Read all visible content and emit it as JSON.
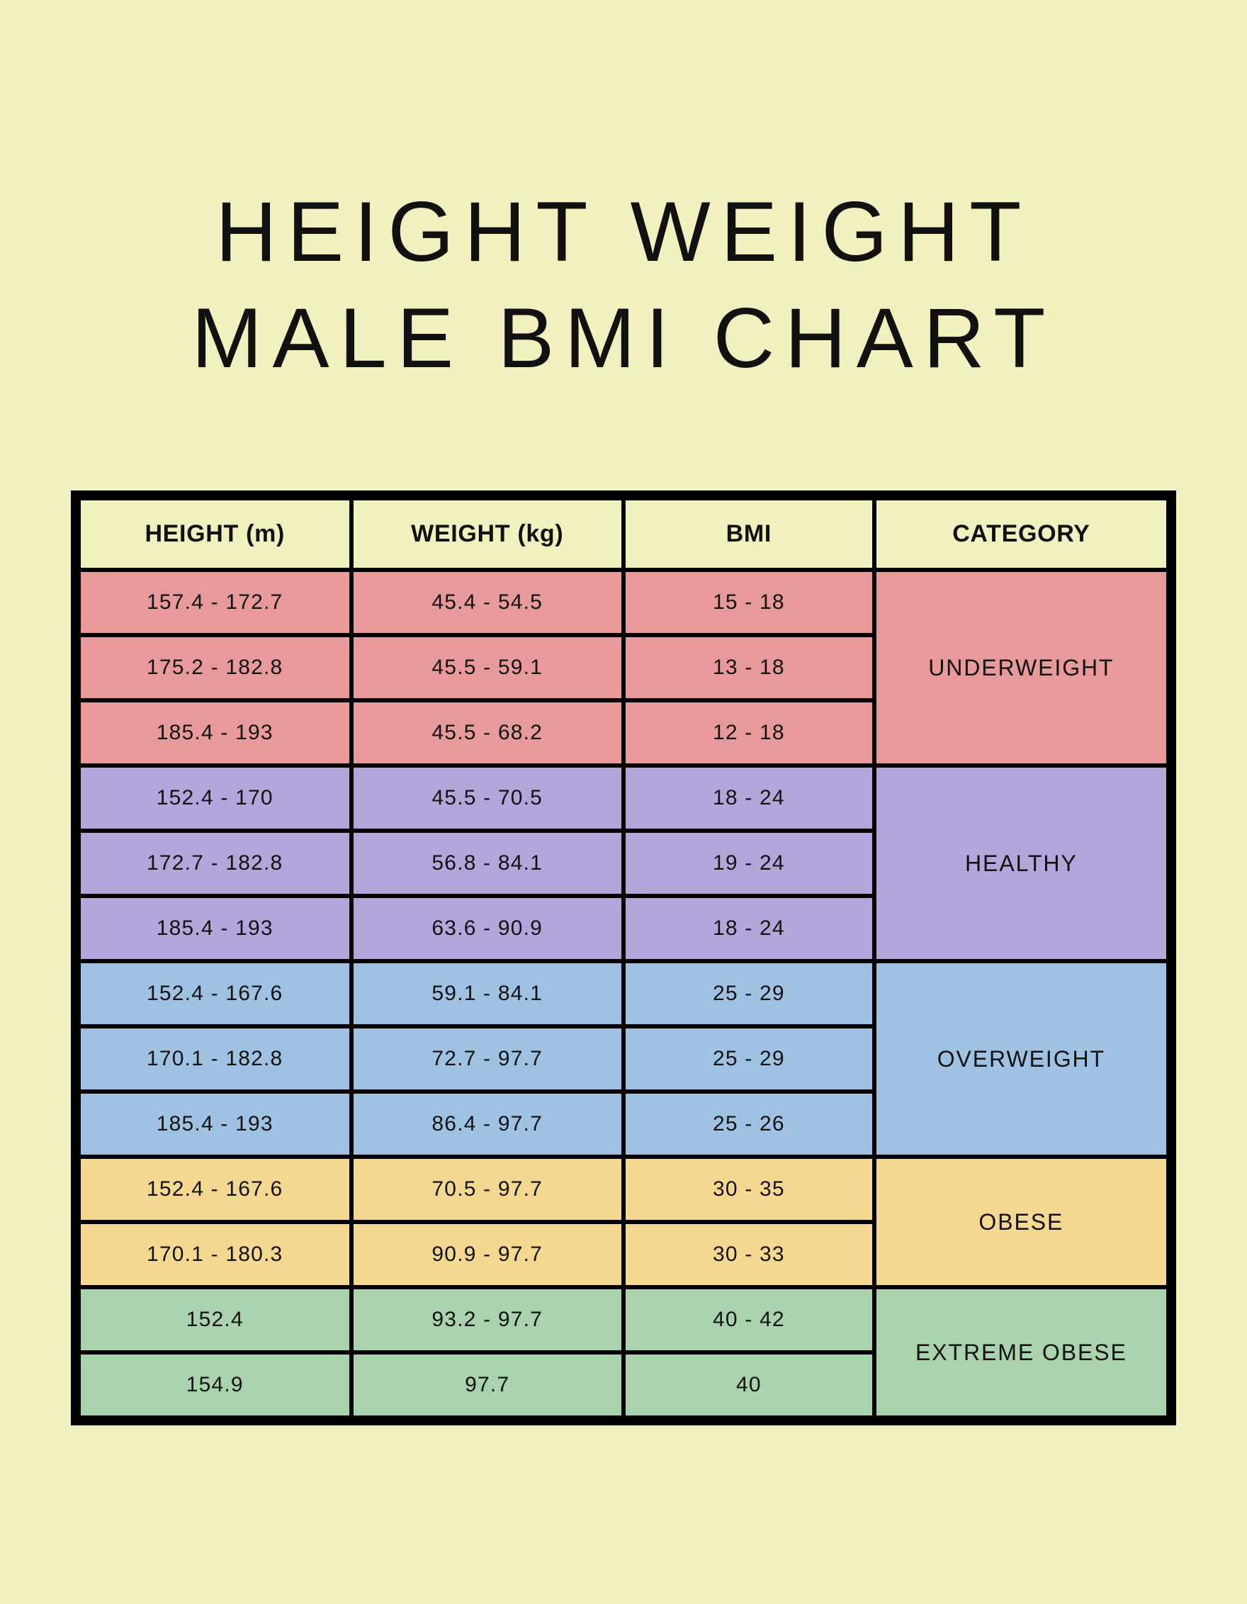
{
  "title_line1": "HEIGHT WEIGHT",
  "title_line2": "MALE BMI CHART",
  "background_color": "#f1f1c0",
  "border_color": "#000000",
  "text_color": "#111111",
  "columns": {
    "height": "HEIGHT (m)",
    "weight": "WEIGHT (kg)",
    "bmi": "BMI",
    "category": "CATEGORY"
  },
  "categories": [
    {
      "label": "UNDERWEIGHT",
      "color": "#e89a9a",
      "rows": [
        {
          "height": "157.4 - 172.7",
          "weight": "45.4 - 54.5",
          "bmi": "15 - 18"
        },
        {
          "height": "175.2 - 182.8",
          "weight": "45.5 - 59.1",
          "bmi": "13 - 18"
        },
        {
          "height": "185.4 - 193",
          "weight": "45.5 - 68.2",
          "bmi": "12 - 18"
        }
      ]
    },
    {
      "label": "HEALTHY",
      "color": "#b4a6da",
      "rows": [
        {
          "height": "152.4 - 170",
          "weight": "45.5 - 70.5",
          "bmi": "18 - 24"
        },
        {
          "height": "172.7 - 182.8",
          "weight": "56.8 - 84.1",
          "bmi": "19 - 24"
        },
        {
          "height": "185.4 - 193",
          "weight": "63.6 - 90.9",
          "bmi": "18 - 24"
        }
      ]
    },
    {
      "label": "OVERWEIGHT",
      "color": "#9fc2e3",
      "rows": [
        {
          "height": "152.4 - 167.6",
          "weight": "59.1 - 84.1",
          "bmi": "25 - 29"
        },
        {
          "height": "170.1 - 182.8",
          "weight": "72.7 - 97.7",
          "bmi": "25 - 29"
        },
        {
          "height": "185.4 - 193",
          "weight": "86.4 - 97.7",
          "bmi": "25 - 26"
        }
      ]
    },
    {
      "label": "OBESE",
      "color": "#f4d890",
      "rows": [
        {
          "height": "152.4 - 167.6",
          "weight": "70.5 - 97.7",
          "bmi": "30 - 35"
        },
        {
          "height": "170.1 - 180.3",
          "weight": "90.9 - 97.7",
          "bmi": "30 - 33"
        }
      ]
    },
    {
      "label": "EXTREME OBESE",
      "color": "#a9d3ad",
      "rows": [
        {
          "height": "152.4",
          "weight": "93.2 - 97.7",
          "bmi": "40 - 42"
        },
        {
          "height": "154.9",
          "weight": "97.7",
          "bmi": "40"
        }
      ]
    }
  ]
}
